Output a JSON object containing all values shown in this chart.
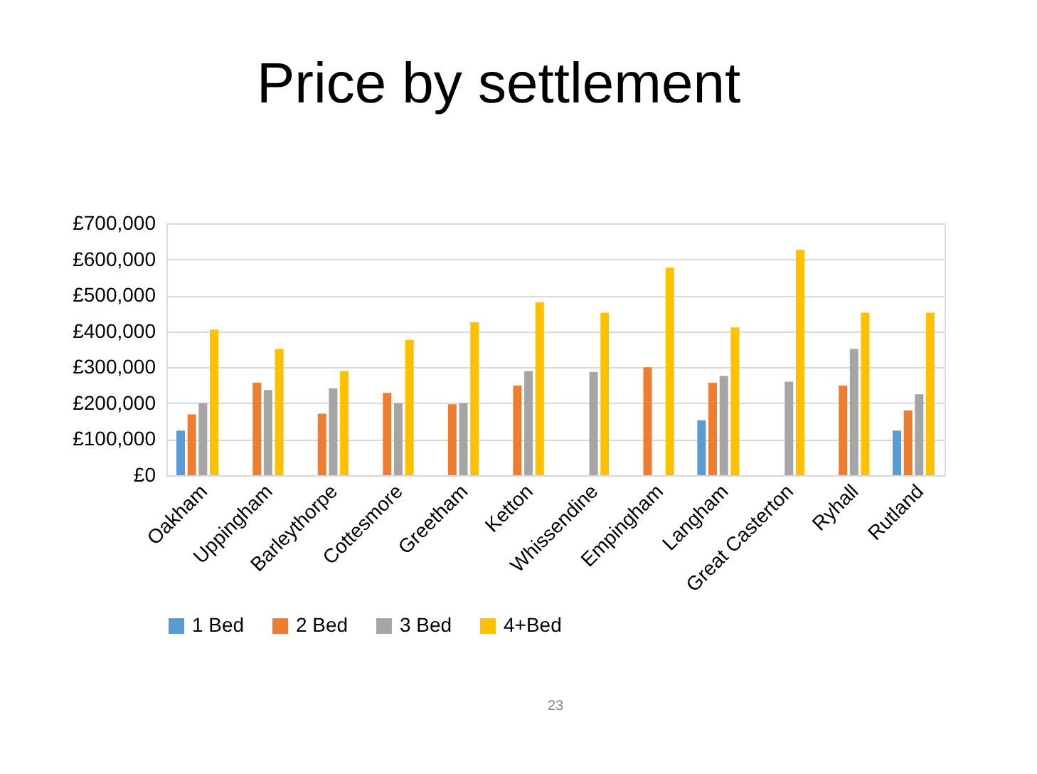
{
  "chart_data": {
    "type": "bar",
    "title": "Price by settlement",
    "categories": [
      "Oakham",
      "Uppingham",
      "Barleythorpe",
      "Cottesmore",
      "Greetham",
      "Ketton",
      "Whissendine",
      "Empingham",
      "Langham",
      "Great Casterton",
      "Ryhall",
      "Rutland"
    ],
    "series": [
      {
        "name": "1 Bed",
        "color": "#5b9bd5",
        "values": [
          124000,
          null,
          null,
          null,
          null,
          null,
          null,
          null,
          153000,
          null,
          null,
          124000
        ]
      },
      {
        "name": "2 Bed",
        "color": "#ed7d31",
        "values": [
          169000,
          257000,
          171000,
          229000,
          197000,
          249000,
          null,
          300000,
          257000,
          null,
          249000,
          180000
        ]
      },
      {
        "name": "3 Bed",
        "color": "#a5a5a5",
        "values": [
          200000,
          237000,
          241000,
          200000,
          200000,
          289000,
          287000,
          null,
          276000,
          260000,
          351000,
          225000
        ]
      },
      {
        "name": "4+Bed",
        "color": "#ffc000",
        "values": [
          405000,
          351000,
          289000,
          376000,
          425000,
          481000,
          452000,
          577000,
          411000,
          627000,
          452000,
          452000
        ]
      }
    ],
    "ylim": [
      0,
      700000
    ],
    "yticks": [
      {
        "value": 0,
        "label": "£0"
      },
      {
        "value": 100000,
        "label": "£100,000"
      },
      {
        "value": 200000,
        "label": "£200,000"
      },
      {
        "value": 300000,
        "label": "£300,000"
      },
      {
        "value": 400000,
        "label": "£400,000"
      },
      {
        "value": 500000,
        "label": "£500,000"
      },
      {
        "value": 600000,
        "label": "£600,000"
      },
      {
        "value": 700000,
        "label": "£700,000"
      }
    ],
    "grid": "y",
    "legend": "bottom",
    "annotations": [
      "23"
    ]
  }
}
